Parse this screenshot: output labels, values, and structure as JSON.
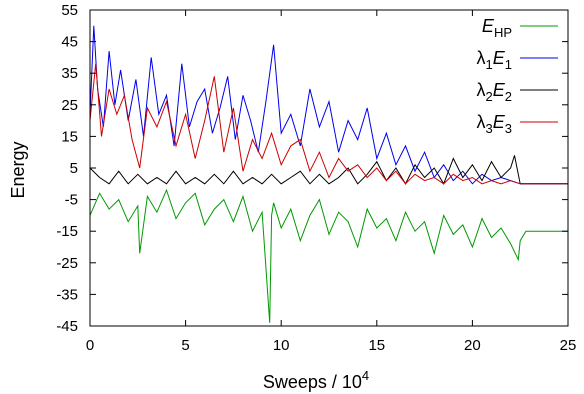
{
  "chart_data": {
    "type": "line",
    "xlabel": "Sweeps / 10",
    "xlabel_exponent": "4",
    "ylabel": "Energy",
    "xlim": [
      0,
      25
    ],
    "ylim": [
      -45,
      55
    ],
    "xticks": [
      "0",
      "5",
      "10",
      "15",
      "20",
      "25"
    ],
    "yticks": [
      "55",
      "45",
      "35",
      "25",
      "15",
      "5",
      "-5",
      "-15",
      "-25",
      "-35",
      "-45"
    ],
    "grid": false,
    "legend_position": "top-right",
    "series": [
      {
        "name": "E_HP",
        "label_main": "E",
        "label_sub": "HP",
        "label_prefix": "",
        "color": "#009900",
        "x": [
          0,
          0.5,
          1,
          1.5,
          2,
          2.5,
          2.6,
          3,
          3.5,
          4,
          4.5,
          5,
          5.5,
          6,
          6.5,
          7,
          7.5,
          8,
          8.5,
          9,
          9.4,
          9.5,
          9.6,
          10,
          10.5,
          11,
          11.5,
          12,
          12.5,
          13,
          13.5,
          14,
          14.5,
          15,
          15.5,
          16,
          16.5,
          17,
          17.5,
          18,
          18.5,
          19,
          19.5,
          20,
          20.5,
          21,
          21.5,
          22,
          22.4,
          22.5,
          22.8,
          23,
          24,
          25
        ],
        "y": [
          -10,
          -3,
          -8,
          -5,
          -12,
          -7,
          -22,
          -4,
          -9,
          -2,
          -11,
          -6,
          -3,
          -13,
          -8,
          -5,
          -12,
          -4,
          -15,
          -9,
          -44,
          -10,
          -6,
          -14,
          -8,
          -18,
          -10,
          -5,
          -16,
          -9,
          -12,
          -20,
          -8,
          -14,
          -11,
          -18,
          -9,
          -15,
          -12,
          -22,
          -10,
          -16,
          -13,
          -20,
          -11,
          -17,
          -14,
          -19,
          -24,
          -18,
          -15,
          -15,
          -15,
          -15
        ]
      },
      {
        "name": "λ1E1",
        "label_main": "E",
        "label_sub": "1",
        "label_prefix": "λ1",
        "color": "#0000ee",
        "x": [
          0,
          0.2,
          0.4,
          0.7,
          1,
          1.3,
          1.6,
          2,
          2.4,
          2.8,
          3.2,
          3.6,
          4,
          4.4,
          4.8,
          5.2,
          5.6,
          6,
          6.4,
          6.8,
          7.2,
          7.6,
          8,
          8.4,
          8.8,
          9.2,
          9.6,
          10,
          10.5,
          11,
          11.5,
          12,
          12.5,
          13,
          13.5,
          14,
          14.5,
          15,
          15.5,
          16,
          16.5,
          17,
          17.5,
          18,
          18.5,
          19,
          19.5,
          20,
          20.5,
          21,
          21.5,
          22,
          22.5,
          23,
          23.5,
          24,
          24.5,
          25
        ],
        "y": [
          22,
          50,
          30,
          18,
          42,
          25,
          36,
          20,
          33,
          15,
          40,
          22,
          28,
          12,
          38,
          18,
          26,
          30,
          16,
          24,
          34,
          14,
          28,
          20,
          10,
          26,
          44,
          16,
          22,
          12,
          30,
          18,
          26,
          10,
          20,
          14,
          24,
          8,
          16,
          6,
          12,
          4,
          10,
          2,
          6,
          1,
          4,
          0,
          3,
          1,
          2,
          1,
          0,
          0,
          0,
          0,
          0,
          0
        ]
      },
      {
        "name": "λ2E2",
        "label_main": "E",
        "label_sub": "2",
        "label_prefix": "λ2",
        "color": "#000000",
        "x": [
          0,
          0.5,
          1,
          1.5,
          2,
          2.5,
          3,
          3.5,
          4,
          4.5,
          5,
          5.5,
          6,
          6.5,
          7,
          7.5,
          8,
          8.5,
          9,
          9.5,
          10,
          10.5,
          11,
          11.5,
          12,
          12.5,
          13,
          13.5,
          14,
          14.5,
          15,
          15.5,
          16,
          16.5,
          17,
          17.5,
          18,
          18.5,
          19,
          19.5,
          20,
          20.5,
          21,
          21.5,
          22,
          22.2,
          22.5,
          23,
          25
        ],
        "y": [
          5,
          2,
          0,
          4,
          0,
          3,
          0,
          2,
          0,
          4,
          0,
          2,
          0,
          3,
          0,
          4,
          0,
          2,
          0,
          3,
          0,
          2,
          4,
          0,
          3,
          0,
          2,
          5,
          0,
          3,
          7,
          1,
          5,
          0,
          6,
          2,
          5,
          0,
          8,
          2,
          6,
          1,
          7,
          2,
          5,
          9,
          0,
          0,
          0
        ]
      },
      {
        "name": "λ3E3",
        "label_main": "E",
        "label_sub": "3",
        "label_prefix": "λ3",
        "color": "#cc0000",
        "x": [
          0,
          0.3,
          0.6,
          1,
          1.4,
          1.8,
          2.2,
          2.6,
          3,
          3.5,
          4,
          4.5,
          5,
          5.5,
          6,
          6.5,
          7,
          7.5,
          8,
          8.5,
          9,
          9.5,
          10,
          10.5,
          11,
          11.5,
          12,
          12.5,
          13,
          13.5,
          14,
          14.5,
          15,
          15.5,
          16,
          16.5,
          17,
          17.5,
          18,
          18.5,
          19,
          19.5,
          20,
          20.5,
          21,
          21.5,
          22,
          22.5,
          23,
          25
        ],
        "y": [
          20,
          38,
          15,
          30,
          22,
          28,
          14,
          5,
          24,
          18,
          26,
          12,
          22,
          8,
          20,
          34,
          10,
          24,
          4,
          14,
          8,
          16,
          6,
          12,
          14,
          4,
          10,
          2,
          8,
          4,
          6,
          2,
          5,
          1,
          4,
          0,
          3,
          1,
          2,
          0,
          3,
          1,
          2,
          0,
          1,
          0,
          1,
          0,
          0,
          0
        ]
      }
    ]
  }
}
